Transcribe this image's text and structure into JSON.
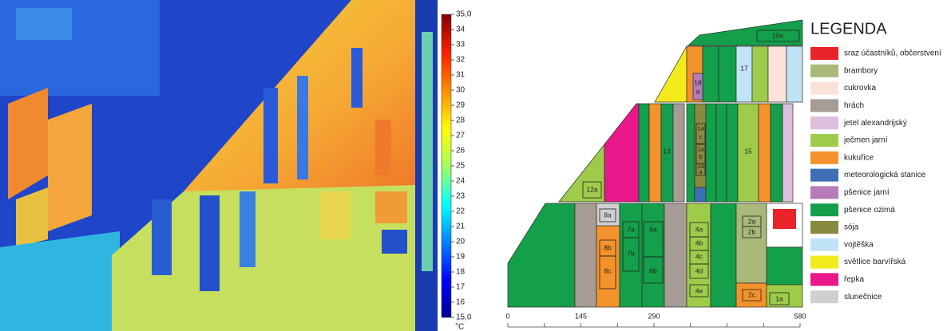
{
  "thermal_scale": {
    "ticks": [
      {
        "value": 35,
        "label": "35,0"
      },
      34,
      33,
      32,
      31,
      30,
      29,
      28,
      27,
      26,
      25,
      24,
      23,
      22,
      21,
      20,
      19,
      18,
      17,
      16,
      {
        "value": 15,
        "label": "15,0"
      }
    ],
    "range": [
      15,
      35
    ],
    "unit": "°C"
  },
  "field_map": {
    "fields": [
      [
        "19a"
      ],
      [
        "17"
      ],
      [
        "18",
        "a"
      ],
      [
        "13"
      ],
      [
        "14",
        "c"
      ],
      [
        "14",
        "b"
      ],
      [
        "14",
        "a"
      ],
      [
        "15"
      ],
      [
        "12a"
      ],
      [
        "8a"
      ],
      [
        "8b"
      ],
      [
        "8c"
      ],
      [
        "7a"
      ],
      [
        "7b"
      ],
      [
        "6a"
      ],
      [
        "6b"
      ],
      [
        "4a"
      ],
      [
        "4b"
      ],
      [
        "4c"
      ],
      [
        "4d"
      ],
      [
        "4e"
      ],
      [
        "2a"
      ],
      [
        "2b"
      ],
      [
        "2c"
      ],
      [
        "1a"
      ]
    ],
    "xlim": [
      0,
      580
    ],
    "xticks": [
      0,
      145,
      290,
      580
    ],
    "xminor": [
      72.5,
      217.5,
      362.5,
      435,
      507.5
    ]
  },
  "legend": {
    "title": "LEGENDA",
    "items": [
      {
        "name": "sraz účastníků, občerstvení",
        "color": "#e8232a"
      },
      {
        "name": "brambory",
        "color": "#a9b97a"
      },
      {
        "name": "cukrovka",
        "color": "#fae2d8"
      },
      {
        "name": "hrách",
        "color": "#a59c94"
      },
      {
        "name": "jetel alexandrijský",
        "color": "#dbbfdc"
      },
      {
        "name": "ječmen jarní",
        "color": "#9fcb4a"
      },
      {
        "name": "kukuřice",
        "color": "#f4922b"
      },
      {
        "name": "meteorologická stanice",
        "color": "#3e6fb5"
      },
      {
        "name": "pšenice jarní",
        "color": "#b67bb8"
      },
      {
        "name": "pšenice ozimá",
        "color": "#14a04a"
      },
      {
        "name": "sója",
        "color": "#868b3f"
      },
      {
        "name": "vojtěška",
        "color": "#c0e4f6"
      },
      {
        "name": "světlice barvířská",
        "color": "#f3ea1c"
      },
      {
        "name": "řepka",
        "color": "#e8178a"
      },
      {
        "name": "slunečnice",
        "color": "#d0d0d0"
      }
    ]
  }
}
